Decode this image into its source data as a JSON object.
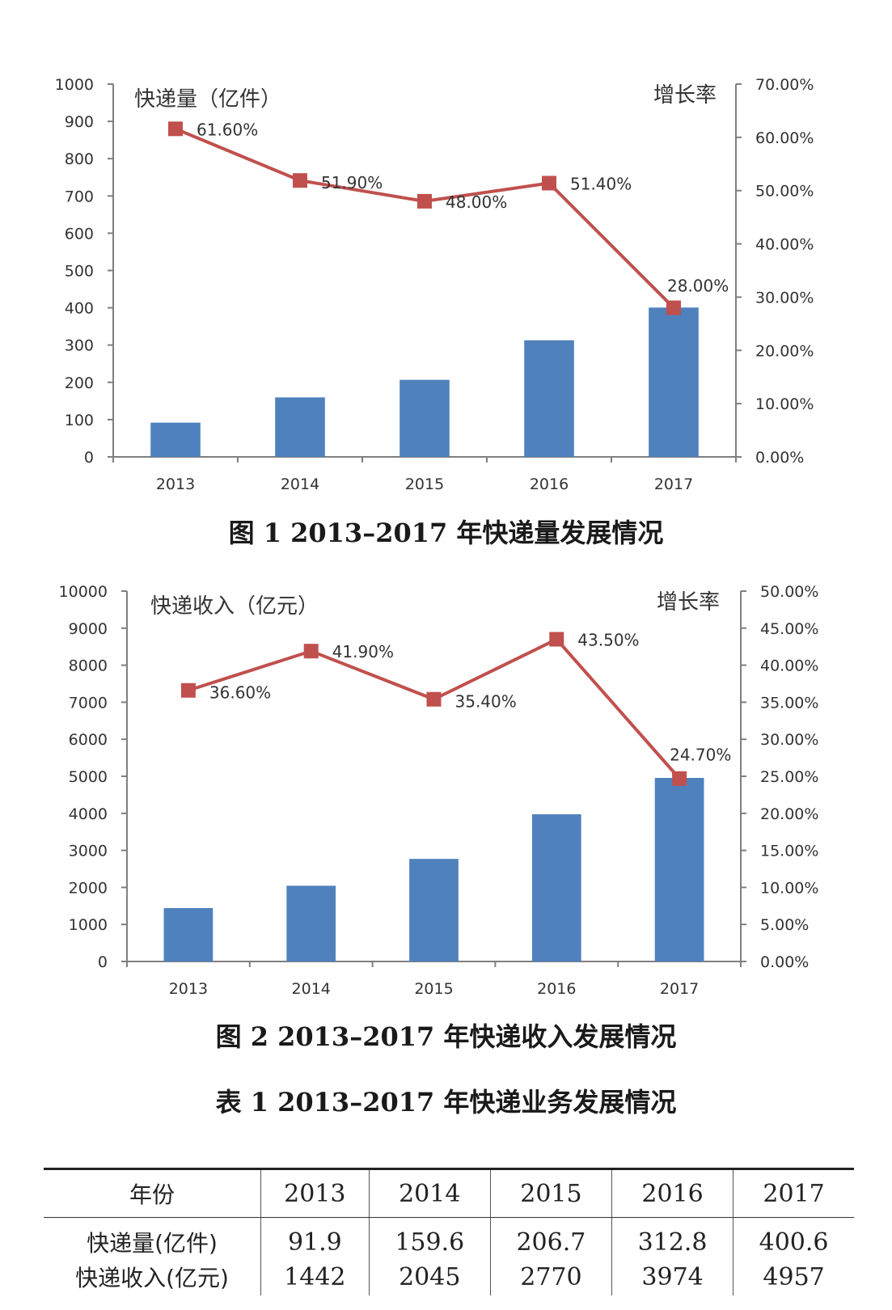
{
  "figure1": {
    "caption": "图 1   2013–2017 年快递量发展情况",
    "chart_data": {
      "type": "bar",
      "categories": [
        "2013",
        "2014",
        "2015",
        "2016",
        "2017"
      ],
      "left_label": "快递量（亿件）",
      "right_label": "增长率",
      "ylim": [
        0,
        1000
      ],
      "y2lim": [
        0,
        70
      ],
      "yticks": [
        "0",
        "100",
        "200",
        "300",
        "400",
        "500",
        "600",
        "700",
        "800",
        "900",
        "1000"
      ],
      "y2ticks": [
        "0.00%",
        "10.00%",
        "20.00%",
        "30.00%",
        "40.00%",
        "50.00%",
        "60.00%",
        "70.00%"
      ],
      "series": [
        {
          "type": "bar",
          "axis": "left",
          "color": "#4f81bd",
          "values": [
            91.9,
            159.6,
            206.7,
            312.8,
            400.6
          ]
        },
        {
          "type": "line",
          "axis": "right",
          "color": "#c0504d",
          "values": [
            61.6,
            51.9,
            48.0,
            51.4,
            28.0
          ],
          "labels": [
            "61.60%",
            "51.90%",
            "48.00%",
            "51.40%",
            "28.00%"
          ]
        }
      ]
    }
  },
  "figure2": {
    "caption": "图 2   2013–2017 年快递收入发展情况",
    "chart_data": {
      "type": "bar",
      "categories": [
        "2013",
        "2014",
        "2015",
        "2016",
        "2017"
      ],
      "left_label": "快递收入（亿元）",
      "right_label": "增长率",
      "ylim": [
        0,
        10000
      ],
      "y2lim": [
        0,
        50
      ],
      "yticks": [
        "0",
        "1000",
        "2000",
        "3000",
        "4000",
        "5000",
        "6000",
        "7000",
        "8000",
        "9000",
        "10000"
      ],
      "y2ticks": [
        "0.00%",
        "5.00%",
        "10.00%",
        "15.00%",
        "20.00%",
        "25.00%",
        "30.00%",
        "35.00%",
        "40.00%",
        "45.00%",
        "50.00%"
      ],
      "series": [
        {
          "type": "bar",
          "axis": "left",
          "color": "#4f81bd",
          "values": [
            1442,
            2045,
            2770,
            3974,
            4957
          ]
        },
        {
          "type": "line",
          "axis": "right",
          "color": "#c0504d",
          "values": [
            36.6,
            41.9,
            35.4,
            43.5,
            24.7
          ],
          "labels": [
            "36.60%",
            "41.90%",
            "35.40%",
            "43.50%",
            "24.70%"
          ]
        }
      ]
    }
  },
  "table": {
    "title": "表 1   2013–2017 年快递业务发展情况",
    "header": [
      "年份",
      "2013",
      "2014",
      "2015",
      "2016",
      "2017"
    ],
    "rows": [
      [
        "快递量(亿件)",
        "91.9",
        "159.6",
        "206.7",
        "312.8",
        "400.6"
      ],
      [
        "快递收入(亿元)",
        "1442",
        "2045",
        "2770",
        "3974",
        "4957"
      ]
    ]
  }
}
